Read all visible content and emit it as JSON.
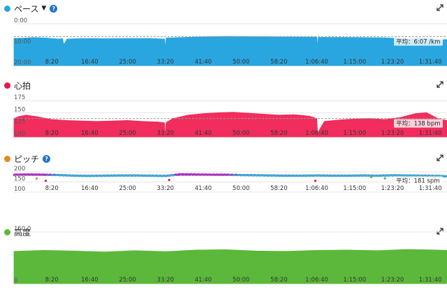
{
  "panels": [
    {
      "id": "pace",
      "title": "ペース",
      "has_dropdown": true,
      "has_help": true,
      "dot_color": "#29a6e0"
    },
    {
      "id": "hr",
      "title": "心拍",
      "has_dropdown": false,
      "has_help": false,
      "dot_color": "#e3194a"
    },
    {
      "id": "cadence",
      "title": "ピッチ",
      "has_dropdown": false,
      "has_help": true,
      "dot_color": "#e08a1e"
    },
    {
      "id": "elevation",
      "title": "高度",
      "has_dropdown": false,
      "has_help": false,
      "dot_color": "#5cb83a"
    }
  ],
  "help_glyph": "?",
  "icons": {
    "dropdown": "caret-down-icon",
    "help": "help-icon",
    "expand": "expand-icon"
  },
  "chart_data": [
    {
      "type": "area",
      "metric": "pace",
      "color": "#29a6e0",
      "y_tick_labels": [
        "0:00",
        "10:00",
        "20:00"
      ],
      "y_ticks": [
        0,
        10,
        20
      ],
      "ylim": [
        0,
        20
      ],
      "y_inverted": true,
      "x_tick_labels": [
        "8:20",
        "16:40",
        "25:00",
        "33:20",
        "41:40",
        "50:00",
        "58:20",
        "1:06:40",
        "1:15:00",
        "1:23:20",
        "1:31:40"
      ],
      "x_ticks": [
        500,
        1000,
        1500,
        2000,
        2500,
        3000,
        3500,
        4000,
        4500,
        5000,
        5500
      ],
      "xlim": [
        0,
        5720
      ],
      "average_label": "平均：6:07 /km",
      "average": 6.12,
      "series": [
        {
          "x": [
            0,
            150,
            260,
            420,
            600,
            640,
            660,
            700,
            900,
            1200,
            1500,
            1800,
            1990,
            2000,
            2010,
            2200,
            2500,
            2800,
            3100,
            3400,
            3700,
            4000,
            4010,
            4020,
            4300,
            4600,
            4900,
            5200,
            5400,
            5600,
            5720
          ],
          "y": [
            7.0,
            6.8,
            6.6,
            6.8,
            7.3,
            7.0,
            10.0,
            7.3,
            7.0,
            7.1,
            7.0,
            7.0,
            7.3,
            12.0,
            6.8,
            6.6,
            6.2,
            6.0,
            6.1,
            6.2,
            6.3,
            6.4,
            11.0,
            6.5,
            6.5,
            6.6,
            6.7,
            7.2,
            6.8,
            7.6,
            7.6
          ]
        }
      ]
    },
    {
      "type": "area",
      "metric": "heart_rate",
      "color": "#f02d5c",
      "y_tick_labels": [
        "175",
        "150",
        "125",
        "100"
      ],
      "y_ticks": [
        175,
        150,
        125,
        100
      ],
      "ylim": [
        100,
        175
      ],
      "x_tick_labels": [
        "8:20",
        "16:40",
        "25:00",
        "33:20",
        "41:40",
        "50:00",
        "58:20",
        "1:06:40",
        "1:15:00",
        "1:23:20",
        "1:31:40"
      ],
      "x_ticks": [
        500,
        1000,
        1500,
        2000,
        2500,
        3000,
        3500,
        4000,
        4500,
        5000,
        5500
      ],
      "xlim": [
        0,
        5720
      ],
      "average_label": "平均：138 bpm",
      "average": 138,
      "series": [
        {
          "x": [
            0,
            60,
            160,
            300,
            500,
            700,
            900,
            1100,
            1300,
            1500,
            1700,
            1900,
            1990,
            2000,
            2010,
            2100,
            2300,
            2500,
            2700,
            2900,
            3100,
            3300,
            3500,
            3700,
            3900,
            4000,
            4010,
            4100,
            4300,
            4500,
            4700,
            4900,
            5100,
            5300,
            5450,
            5600,
            5720
          ],
          "y": [
            138,
            142,
            145,
            142,
            136,
            134,
            133,
            132,
            133,
            134,
            132,
            131,
            129,
            100,
            130,
            138,
            145,
            148,
            150,
            151,
            149,
            147,
            145,
            146,
            143,
            138,
            108,
            132,
            135,
            137,
            138,
            136,
            140,
            148,
            150,
            138,
            134
          ]
        }
      ]
    },
    {
      "type": "scatter",
      "metric": "cadence",
      "colors": {
        "high": "#b02fc8",
        "normal": "#29a6e0",
        "low": "#59b93a",
        "lower": "#e08a1e",
        "lowest": "#d7193f"
      },
      "y_tick_labels": [
        "200",
        "150",
        "100"
      ],
      "y_ticks": [
        200,
        150,
        100
      ],
      "ylim": [
        100,
        200
      ],
      "x_tick_labels": [
        "8:20",
        "16:40",
        "25:00",
        "33:20",
        "41:40",
        "50:00",
        "58:20",
        "1:06:40",
        "1:15:00",
        "1:23:20",
        "1:31:40"
      ],
      "x_ticks": [
        500,
        1000,
        1500,
        2000,
        2500,
        3000,
        3500,
        4000,
        4500,
        5000,
        5500
      ],
      "xlim": [
        0,
        5720
      ],
      "average_label": "平均：181 spm",
      "average": 181,
      "series": [
        {
          "name": "main",
          "x": [
            0,
            200,
            400,
            600,
            800,
            1000,
            1200,
            1400,
            1600,
            1800,
            2000,
            2200,
            2400,
            2600,
            2800,
            3000,
            3200,
            3400,
            3600,
            3800,
            4000,
            4200,
            4400,
            4600,
            4800,
            5000,
            5200,
            5400,
            5600,
            5720
          ],
          "y": [
            186,
            187,
            186,
            184,
            181,
            180,
            181,
            182,
            182,
            181,
            180,
            188,
            187,
            186,
            186,
            184,
            183,
            182,
            181,
            181,
            182,
            181,
            181,
            182,
            181,
            183,
            182,
            181,
            180,
            178
          ]
        },
        {
          "name": "outliers",
          "x": [
            300,
            420,
            2050,
            3980,
            4720,
            4900,
            5560
          ],
          "y": [
            167,
            156,
            160,
            156,
            174,
            168,
            170
          ],
          "zone": [
            "lower",
            "lowest",
            "lowest",
            "lowest",
            "low",
            "low",
            "low"
          ]
        }
      ]
    },
    {
      "type": "area",
      "metric": "elevation",
      "color": "#5cb83a",
      "y_tick_labels": [
        "160.0",
        "0"
      ],
      "y_ticks": [
        160,
        0
      ],
      "ylim": [
        0,
        160
      ],
      "x_tick_labels": [
        "8:20",
        "16:40",
        "25:00",
        "33:20",
        "41:40",
        "50:00",
        "58:20",
        "1:06:40",
        "1:15:00",
        "1:23:20",
        "1:31:40"
      ],
      "x_ticks": [
        500,
        1000,
        1500,
        2000,
        2500,
        3000,
        3500,
        4000,
        4500,
        5000,
        5500
      ],
      "xlim": [
        0,
        5720
      ],
      "series": [
        {
          "x": [
            0,
            400,
            800,
            1200,
            1600,
            2000,
            2400,
            2800,
            3200,
            3600,
            4000,
            4400,
            4800,
            5200,
            5600,
            5720
          ],
          "y": [
            100,
            103,
            101,
            98,
            102,
            99,
            104,
            105,
            101,
            100,
            103,
            104,
            102,
            106,
            104,
            103
          ]
        }
      ]
    }
  ]
}
